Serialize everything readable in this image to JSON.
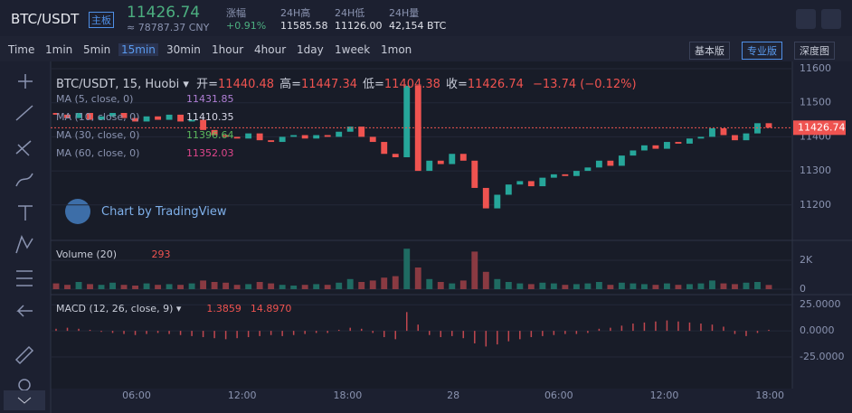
{
  "header": {
    "symbol": "BTC/USDT",
    "badge": "主板",
    "price": "11426.74",
    "cny": "≈ 78787.37 CNY",
    "stats": [
      {
        "label": "涨幅",
        "value": "+0.91%"
      },
      {
        "label": "24H高",
        "value": "11585.58"
      },
      {
        "label": "24H低",
        "value": "11126.00"
      },
      {
        "label": "24H量",
        "value": "42,154 BTC"
      }
    ]
  },
  "toolbar": {
    "intervals": [
      "Time",
      "1min",
      "5min",
      "15min",
      "30min",
      "1hour",
      "4hour",
      "1day",
      "1week",
      "1mon"
    ],
    "active_interval": "15min",
    "buttons": [
      "基本版",
      "专业版",
      "深度图"
    ],
    "active_button": "专业版"
  },
  "chart": {
    "legend": {
      "title": "BTC/USDT, 15, Huobi",
      "ohlc": [
        {
          "label": "开=",
          "value": "11440.48"
        },
        {
          "label": "高=",
          "value": "11447.34"
        },
        {
          "label": "低=",
          "value": "11404.38"
        },
        {
          "label": "收=",
          "value": "11426.74"
        }
      ],
      "change": "−13.74 (−0.12%)"
    },
    "ma": [
      {
        "name": "MA (5, close, 0)",
        "value": "11431.85",
        "color": "#b07fd6"
      },
      {
        "name": "MA (10, close, 0)",
        "value": "11410.35",
        "color": "#d8d8e8"
      },
      {
        "name": "MA (30, close, 0)",
        "value": "11396.64",
        "color": "#5cb85c"
      },
      {
        "name": "MA (60, close, 0)",
        "value": "11352.03",
        "color": "#e0468c"
      }
    ],
    "watermark": "Chart by TradingView",
    "price_ylim": [
      11100,
      11600
    ],
    "price_ticks": [
      11600,
      11500,
      11400,
      11300,
      11200
    ],
    "current_price": 11426.74,
    "first_open": 11470,
    "closes": [
      11465,
      11455,
      11470,
      11450,
      11460,
      11470,
      11455,
      11445,
      11460,
      11450,
      11465,
      11445,
      11450,
      11420,
      11405,
      11400,
      11395,
      11410,
      11390,
      11385,
      11400,
      11405,
      11395,
      11405,
      11400,
      11415,
      11430,
      11400,
      11385,
      11350,
      11340,
      11550,
      11300,
      11330,
      11320,
      11350,
      11330,
      11250,
      11190,
      11230,
      11260,
      11270,
      11255,
      11280,
      11290,
      11285,
      11300,
      11310,
      11330,
      11315,
      11345,
      11360,
      11375,
      11365,
      11385,
      11380,
      11395,
      11400,
      11425,
      11405,
      11390,
      11410,
      11440,
      11426.74
    ],
    "volume_label": "Volume (20)",
    "volume_value": "293",
    "volume_ylim": [
      0,
      3250
    ],
    "volume_ticks": [
      {
        "value": 2000,
        "label": "2K"
      },
      0
    ],
    "volumes": [
      400,
      300,
      500,
      350,
      300,
      450,
      300,
      250,
      400,
      300,
      350,
      300,
      400,
      600,
      500,
      450,
      300,
      350,
      500,
      400,
      300,
      250,
      300,
      350,
      300,
      450,
      700,
      500,
      600,
      800,
      900,
      2800,
      1500,
      700,
      500,
      400,
      600,
      2600,
      1200,
      700,
      500,
      400,
      350,
      450,
      400,
      300,
      350,
      400,
      500,
      300,
      450,
      400,
      350,
      300,
      400,
      300,
      350,
      400,
      600,
      400,
      350,
      450,
      500,
      293
    ],
    "macd_label": "MACD (12, 26, close, 9)",
    "macd_values": [
      {
        "value": "1.3859",
        "color": "#ef5350"
      },
      {
        "value": "14.8970",
        "color": "#ef5350"
      }
    ],
    "macd_ylim": [
      -51,
      33
    ],
    "macd_ticks": [
      {
        "value": 25,
        "label": "25.0000"
      },
      {
        "value": 0,
        "label": "0.0000"
      },
      {
        "value": -25,
        "label": "-25.0000"
      }
    ],
    "macd_hist": [
      2,
      3,
      2,
      1,
      -1,
      -2,
      -3,
      -4,
      -3,
      -2,
      -3,
      -4,
      -5,
      -6,
      -7,
      -8,
      -7,
      -6,
      -5,
      -4,
      -5,
      -4,
      -3,
      -2,
      -2,
      1,
      3,
      2,
      -2,
      -6,
      -8,
      18,
      6,
      -4,
      -6,
      -5,
      -7,
      -12,
      -15,
      -13,
      -10,
      -8,
      -6,
      -5,
      -4,
      -3,
      -3,
      -2,
      2,
      3,
      5,
      7,
      8,
      9,
      10,
      9,
      8,
      7,
      6,
      4,
      -3,
      -5,
      -2,
      1
    ],
    "time_labels": [
      "06:00",
      "12:00",
      "18:00",
      "28",
      "06:00",
      "12:00",
      "18:00"
    ]
  }
}
